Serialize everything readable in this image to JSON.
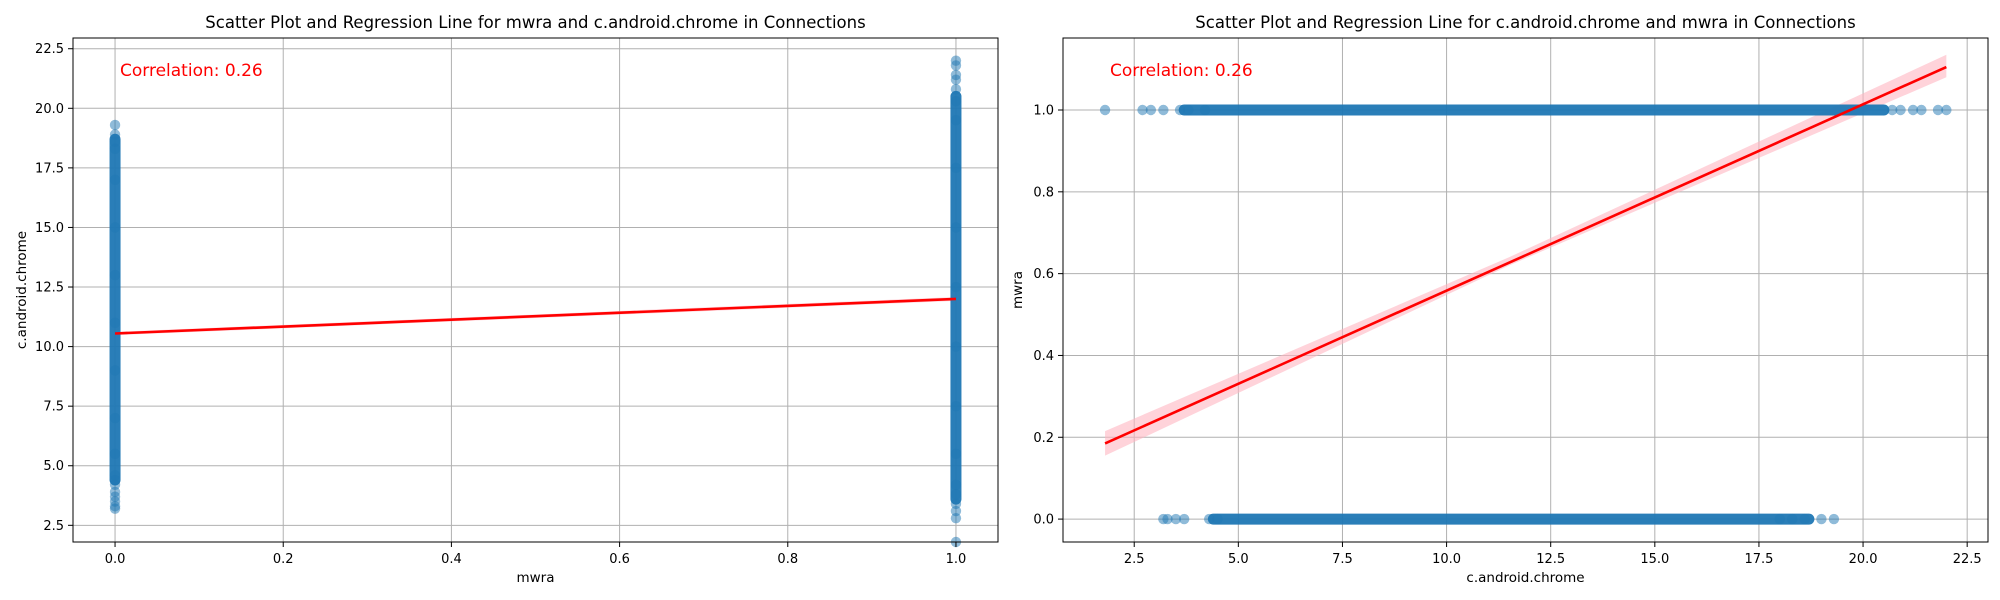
{
  "chart_data": [
    {
      "type": "scatter",
      "title": "Scatter Plot and Regression Line for mwra and c.android.chrome in Connections",
      "xlabel": "mwra",
      "ylabel": "c.android.chrome",
      "xlim": [
        -0.05,
        1.05
      ],
      "ylim": [
        1.8,
        22.95
      ],
      "xticks": [
        0.0,
        0.2,
        0.4,
        0.6,
        0.8,
        1.0
      ],
      "xtick_labels": [
        "0.0",
        "0.2",
        "0.4",
        "0.6",
        "0.8",
        "1.0"
      ],
      "yticks": [
        2.5,
        5.0,
        7.5,
        10.0,
        12.5,
        15.0,
        17.5,
        20.0,
        22.5
      ],
      "ytick_labels": [
        "2.5",
        "5.0",
        "7.5",
        "10.0",
        "12.5",
        "15.0",
        "17.5",
        "20.0",
        "22.5"
      ],
      "grid": true,
      "annotation": "Correlation: 0.26",
      "point_color": "#1f77b4",
      "line_color": "#ff0000",
      "band_color": "#ffb6c1",
      "points": [
        {
          "x": 0,
          "y": 3.2
        },
        {
          "x": 0,
          "y": 3.3
        },
        {
          "x": 0,
          "y": 3.5
        },
        {
          "x": 0,
          "y": 3.7
        },
        {
          "x": 0,
          "y": 3.9
        },
        {
          "x": 0,
          "y": 4.2
        },
        {
          "x": 0,
          "y": 4.4
        },
        {
          "x": 0,
          "y": 4.6
        },
        {
          "x": 0,
          "y": 5.5
        },
        {
          "x": 0,
          "y": 7.0
        },
        {
          "x": 0,
          "y": 9.0
        },
        {
          "x": 0,
          "y": 11.0
        },
        {
          "x": 0,
          "y": 13.0
        },
        {
          "x": 0,
          "y": 15.0
        },
        {
          "x": 0,
          "y": 17.0
        },
        {
          "x": 0,
          "y": 18.3
        },
        {
          "x": 0,
          "y": 18.6
        },
        {
          "x": 0,
          "y": 18.9
        },
        {
          "x": 0,
          "y": 19.3
        },
        {
          "x": 1,
          "y": 1.8
        },
        {
          "x": 1,
          "y": 2.8
        },
        {
          "x": 1,
          "y": 3.1
        },
        {
          "x": 1,
          "y": 3.4
        },
        {
          "x": 1,
          "y": 3.8
        },
        {
          "x": 1,
          "y": 4.2
        },
        {
          "x": 1,
          "y": 5.5
        },
        {
          "x": 1,
          "y": 7.5
        },
        {
          "x": 1,
          "y": 10.0
        },
        {
          "x": 1,
          "y": 12.5
        },
        {
          "x": 1,
          "y": 15.0
        },
        {
          "x": 1,
          "y": 17.5
        },
        {
          "x": 1,
          "y": 19.5
        },
        {
          "x": 1,
          "y": 20.3
        },
        {
          "x": 1,
          "y": 20.8
        },
        {
          "x": 1,
          "y": 21.2
        },
        {
          "x": 1,
          "y": 21.4
        },
        {
          "x": 1,
          "y": 21.8
        },
        {
          "x": 1,
          "y": 22.0
        }
      ],
      "bands": [
        {
          "x0": 0,
          "x1": 0,
          "y0": 4.4,
          "y1": 18.7
        },
        {
          "x0": 1,
          "x1": 1,
          "y0": 3.6,
          "y1": 20.5
        }
      ],
      "regression": {
        "x": [
          0,
          1
        ],
        "y": [
          10.55,
          12.0
        ]
      },
      "confidence_band": {
        "x": [
          0,
          1
        ],
        "lower": [
          10.48,
          11.92
        ],
        "upper": [
          10.62,
          12.08
        ]
      }
    },
    {
      "type": "scatter",
      "title": "Scatter Plot and Regression Line for c.android.chrome and mwra in Connections",
      "xlabel": "c.android.chrome",
      "ylabel": "mwra",
      "xlim": [
        0.79,
        23.0
      ],
      "ylim": [
        -0.056,
        1.176
      ],
      "xticks": [
        2.5,
        5.0,
        7.5,
        10.0,
        12.5,
        15.0,
        17.5,
        20.0,
        22.5
      ],
      "xtick_labels": [
        "2.5",
        "5.0",
        "7.5",
        "10.0",
        "12.5",
        "15.0",
        "17.5",
        "20.0",
        "22.5"
      ],
      "yticks": [
        0.0,
        0.2,
        0.4,
        0.6,
        0.8,
        1.0
      ],
      "ytick_labels": [
        "0.0",
        "0.2",
        "0.4",
        "0.6",
        "0.8",
        "1.0"
      ],
      "grid": true,
      "annotation": "Correlation: 0.26",
      "point_color": "#1f77b4",
      "line_color": "#ff0000",
      "band_color": "#ffb6c1",
      "points": [
        {
          "x": 1.8,
          "y": 1
        },
        {
          "x": 2.7,
          "y": 1
        },
        {
          "x": 2.9,
          "y": 1
        },
        {
          "x": 3.2,
          "y": 1
        },
        {
          "x": 3.6,
          "y": 1
        },
        {
          "x": 3.8,
          "y": 1
        },
        {
          "x": 4.2,
          "y": 1
        },
        {
          "x": 20.7,
          "y": 1
        },
        {
          "x": 20.9,
          "y": 1
        },
        {
          "x": 21.2,
          "y": 1
        },
        {
          "x": 21.4,
          "y": 1
        },
        {
          "x": 21.8,
          "y": 1
        },
        {
          "x": 22.0,
          "y": 1
        },
        {
          "x": 3.2,
          "y": 0
        },
        {
          "x": 3.3,
          "y": 0
        },
        {
          "x": 3.5,
          "y": 0
        },
        {
          "x": 3.7,
          "y": 0
        },
        {
          "x": 4.3,
          "y": 0
        },
        {
          "x": 4.5,
          "y": 0
        },
        {
          "x": 18.0,
          "y": 0
        },
        {
          "x": 18.3,
          "y": 0
        },
        {
          "x": 18.6,
          "y": 0
        },
        {
          "x": 19.0,
          "y": 0
        },
        {
          "x": 19.3,
          "y": 0
        }
      ],
      "bands": [
        {
          "x0": 3.7,
          "x1": 20.5,
          "y0": 1,
          "y1": 1
        },
        {
          "x0": 4.4,
          "x1": 18.7,
          "y0": 0,
          "y1": 0
        }
      ],
      "regression": {
        "x": [
          1.8,
          22.0
        ],
        "y": [
          0.185,
          1.105
        ]
      },
      "confidence_band": {
        "x": [
          1.8,
          11.5,
          22.0
        ],
        "lower": [
          0.155,
          0.62,
          1.08
        ],
        "upper": [
          0.215,
          0.64,
          1.135
        ]
      }
    }
  ]
}
